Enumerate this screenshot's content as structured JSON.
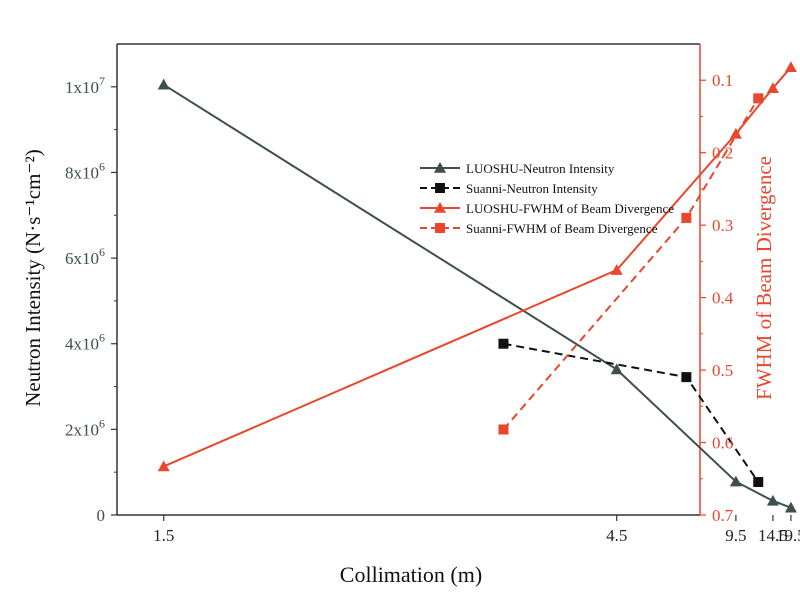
{
  "chart_data": {
    "type": "line",
    "xlabel": "Collimation (m)",
    "ylabel_left": "Neutron Intensity (N·s⁻¹cm⁻²)",
    "ylabel_right": "FWHM of Beam Divergence",
    "x_ticks": [
      "1.5",
      "4.5",
      "9.5",
      "14.5",
      "19.5"
    ],
    "x_tick_values": [
      1.5,
      4.5,
      9.5,
      14.5,
      19.5
    ],
    "x_scale": "reciprocal",
    "y_left_range": [
      0,
      11000000
    ],
    "y_left_ticks": [
      {
        "value": 0,
        "mantissa": "0",
        "exp": ""
      },
      {
        "value": 2000000,
        "mantissa": "2x10",
        "exp": "6"
      },
      {
        "value": 4000000,
        "mantissa": "4x10",
        "exp": "6"
      },
      {
        "value": 6000000,
        "mantissa": "6x10",
        "exp": "6"
      },
      {
        "value": 8000000,
        "mantissa": "8x10",
        "exp": "6"
      },
      {
        "value": 10000000,
        "mantissa": "1x10",
        "exp": "7"
      }
    ],
    "y_right_range": [
      0.7,
      0.05
    ],
    "y_right_ticks": [
      "0.1",
      "0.2",
      "0.3",
      "0.4",
      "0.5",
      "0.6",
      "0.7"
    ],
    "y_right_tick_values": [
      0.1,
      0.2,
      0.3,
      0.4,
      0.5,
      0.6,
      0.7
    ],
    "colors": {
      "dark": "#3d4f4f",
      "red": "#e8472e",
      "axis_left": "#333333"
    },
    "series": [
      {
        "name": "LUOSHU-Neutron Intensity",
        "axis": "left",
        "color": "#3d4f4f",
        "dash": "solid",
        "marker": "triangle",
        "x": [
          1.5,
          4.5,
          9.5,
          14.5,
          19.5
        ],
        "y": [
          10050000,
          3400000,
          780000,
          330000,
          170000
        ]
      },
      {
        "name": "Suanni-Neutron Intensity",
        "axis": "left",
        "color": "#111111",
        "dash": "dashed",
        "marker": "square",
        "x": [
          3.0,
          6.5,
          12.0
        ],
        "y": [
          4000000,
          3220000,
          770000
        ]
      },
      {
        "name": "LUOSHU-FWHM of Beam Divergence",
        "axis": "right",
        "color": "#e8472e",
        "dash": "solid",
        "marker": "triangle",
        "x": [
          1.5,
          4.5,
          9.5,
          14.5,
          19.5
        ],
        "y": [
          0.633,
          0.362,
          0.174,
          0.111,
          0.082
        ]
      },
      {
        "name": "Suanni-FWHM of Beam Divergence",
        "axis": "right",
        "color": "#e8472e",
        "dash": "dashed",
        "marker": "square",
        "x": [
          3.0,
          6.5,
          12.0
        ],
        "y": [
          0.582,
          0.29,
          0.125
        ]
      }
    ],
    "legend_position": "center-right"
  }
}
